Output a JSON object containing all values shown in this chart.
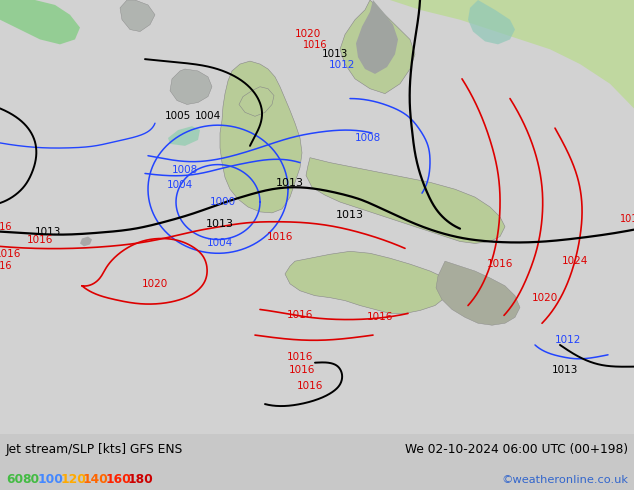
{
  "title_left": "Jet stream/SLP [kts] GFS ENS",
  "title_right": "We 02-10-2024 06:00 UTC (00+198)",
  "credit": "©weatheronline.co.uk",
  "legend_values": [
    "60",
    "80",
    "100",
    "120",
    "140",
    "160",
    "180"
  ],
  "legend_colors": [
    "#44bb44",
    "#44bb44",
    "#4488ff",
    "#ffaa00",
    "#ff6600",
    "#ff2200",
    "#cc0000"
  ],
  "bg_color": "#c8c8c8",
  "ocean_color": "#d0d0d8",
  "land_green": "#b8d4a8",
  "land_gray": "#a8a8a8",
  "figsize": [
    6.34,
    4.9
  ],
  "dpi": 100,
  "info_bg": "#c8c8c8"
}
